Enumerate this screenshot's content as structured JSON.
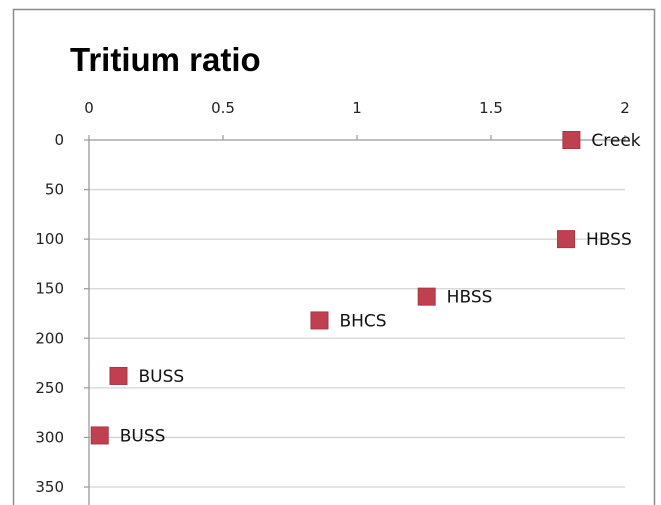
{
  "chart_data": {
    "type": "scatter",
    "title": "Tritium ratio",
    "xlabel": "",
    "ylabel": "",
    "xlim": [
      0,
      2
    ],
    "ylim": [
      0,
      350
    ],
    "y_inverted": true,
    "x_axis_position": "top",
    "x_ticks": [
      "0",
      "0.5",
      "1",
      "1.5",
      "2"
    ],
    "y_ticks": [
      "0",
      "50",
      "100",
      "150",
      "200",
      "250",
      "300",
      "350"
    ],
    "grid": "horizontal",
    "legend": "none",
    "marker": "square",
    "marker_color": "#c0404f",
    "points": [
      {
        "x": 1.8,
        "y": 0,
        "label": "Creek"
      },
      {
        "x": 1.78,
        "y": 100,
        "label": "HBSS"
      },
      {
        "x": 1.26,
        "y": 158,
        "label": "HBSS"
      },
      {
        "x": 0.86,
        "y": 182,
        "label": "BHCS"
      },
      {
        "x": 0.11,
        "y": 238,
        "label": "BUSS"
      },
      {
        "x": 0.04,
        "y": 298,
        "label": "BUSS"
      }
    ]
  }
}
